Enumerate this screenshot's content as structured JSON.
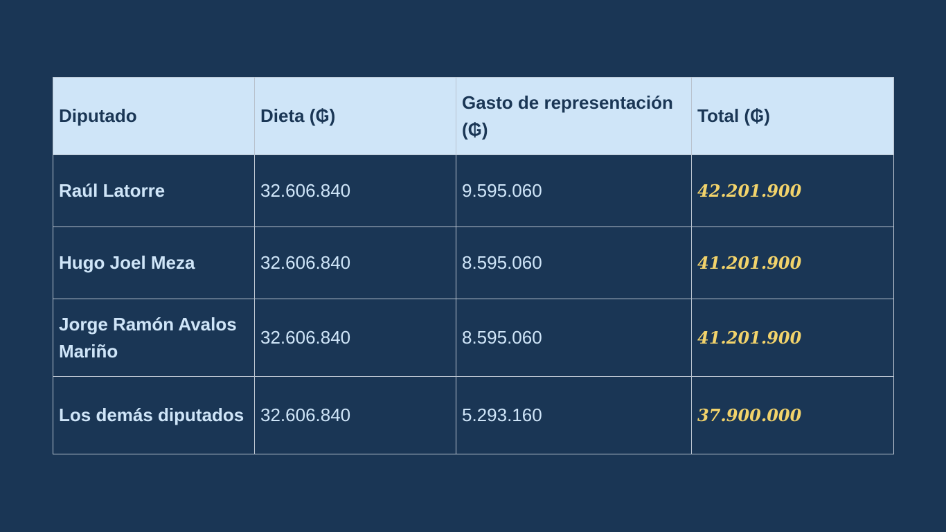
{
  "table": {
    "headers": [
      "Diputado",
      "Dieta (₲)",
      "Gasto de representación (₲)",
      "Total (₲)"
    ],
    "rows": [
      {
        "diputado": "Raúl Latorre",
        "dieta": "32.606.840",
        "gasto": "9.595.060",
        "total": "42.201.900"
      },
      {
        "diputado": "Hugo Joel Meza",
        "dieta": "32.606.840",
        "gasto": "8.595.060",
        "total": "41.201.900"
      },
      {
        "diputado": "Jorge Ramón Avalos Mariño",
        "dieta": "32.606.840",
        "gasto": "8.595.060",
        "total": "41.201.900"
      },
      {
        "diputado": "Los demás diputados",
        "dieta": "32.606.840",
        "gasto": "5.293.160",
        "total": "37.900.000"
      }
    ]
  },
  "colors": {
    "background": "#1a3655",
    "header_bg": "#cfe5f8",
    "text_light": "#cfe5f8",
    "total_accent": "#f2d36b",
    "border": "#b9c3cf"
  }
}
